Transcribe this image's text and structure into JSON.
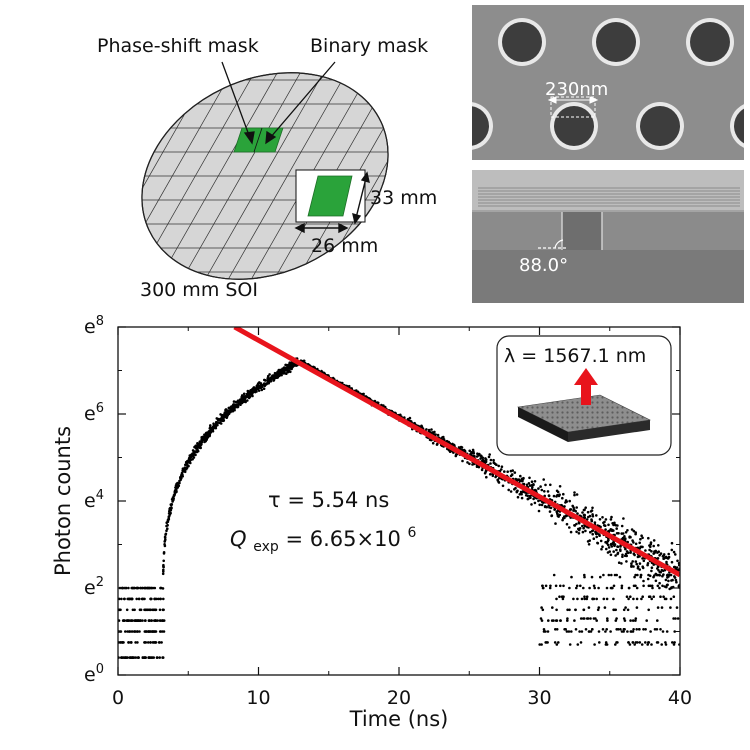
{
  "wafer": {
    "phase_mask_label": "Phase-shift mask",
    "binary_mask_label": "Binary mask",
    "height_label": "33 mm",
    "width_label": "26 mm",
    "wafer_label": "300 mm SOI",
    "mask_color": "#2aa33a"
  },
  "sem": {
    "top_label": "230nm",
    "bottom_label": "88.0°"
  },
  "chart_data": {
    "type": "scatter",
    "xlabel": "Time (ns)",
    "ylabel": "Photon counts",
    "xlim": [
      0,
      40
    ],
    "ylim_ln": [
      0,
      8
    ],
    "x_ticks": [
      0,
      10,
      20,
      30,
      40
    ],
    "y_ticks": [
      {
        "value": 0,
        "base": "e",
        "exp": "0"
      },
      {
        "value": 2,
        "base": "e",
        "exp": "2"
      },
      {
        "value": 4,
        "base": "e",
        "exp": "4"
      },
      {
        "value": 6,
        "base": "e",
        "exp": "6"
      },
      {
        "value": 8,
        "base": "e",
        "exp": "8"
      }
    ],
    "y_scale": "log (natural)",
    "series": [
      {
        "type": "scatter",
        "color": "#000000",
        "rise": {
          "onset_x": 3.2,
          "onset_ln": 1.6,
          "peak_x": 12.8,
          "peak_ln": 7.2
        },
        "decay": {
          "start_x": 13.0,
          "start_ln": 7.2,
          "end_x": 40,
          "end_ln": 2.3
        },
        "noise_floor_ln": [
          0.4,
          2.0
        ]
      },
      {
        "type": "line",
        "color": "#e8141c",
        "x": [
          8.3,
          40
        ],
        "y_ln": [
          8.0,
          2.3
        ]
      }
    ],
    "annotations": {
      "tau": "τ = 5.54 ns",
      "q_base": "Q",
      "q_sub": "exp",
      "q_value": " = 6.65×10",
      "q_exp": "6"
    },
    "inset_label": "λ = 1567.1 nm",
    "grid": false
  }
}
